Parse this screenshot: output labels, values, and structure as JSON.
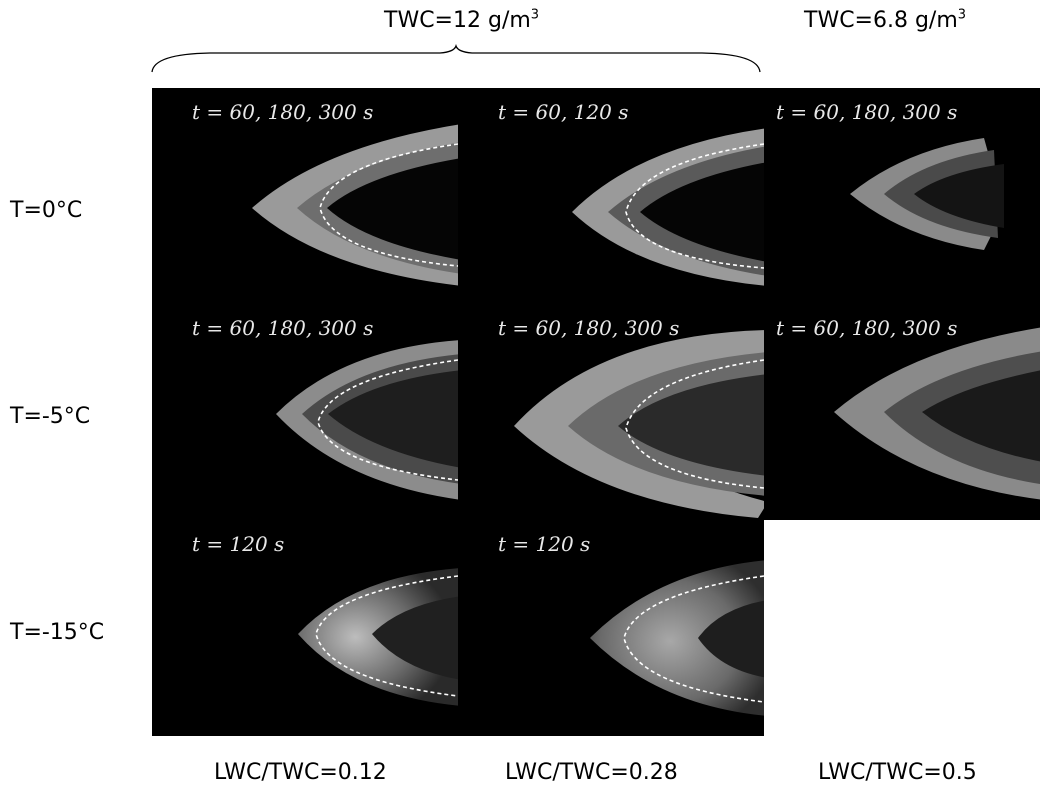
{
  "header": {
    "twc_group_1": {
      "label": "TWC=12 g/m",
      "sup": "3"
    },
    "twc_group_2": {
      "label": "TWC=6.8 g/m",
      "sup": "3"
    }
  },
  "rows": [
    {
      "label": "T=0°C"
    },
    {
      "label": "T=-5°C"
    },
    {
      "label": "T=-15°C"
    }
  ],
  "columns": [
    {
      "label": "LWC/TWC=0.12"
    },
    {
      "label": "LWC/TWC=0.28"
    },
    {
      "label": "LWC/TWC=0.5"
    }
  ],
  "panels": {
    "r0c0": {
      "time": "t = 60, 180, 300 s"
    },
    "r0c1": {
      "time": "t = 60, 120 s"
    },
    "r0c2": {
      "time": "t = 60, 180, 300 s"
    },
    "r1c0": {
      "time": "t = 60, 180, 300 s"
    },
    "r1c1": {
      "time": "t = 60, 180, 300 s"
    },
    "r1c2": {
      "time": "t = 60, 180, 300 s"
    },
    "r2c0": {
      "time": "t = 120 s"
    },
    "r2c1": {
      "time": "t = 120 s"
    }
  },
  "colors": {
    "panel_background": "#000000",
    "ice_light": "#9a9a9a",
    "ice_mid": "#6e6e6e",
    "ice_dark": "#3c3c3c",
    "airfoil_outline": "#ffffff"
  }
}
